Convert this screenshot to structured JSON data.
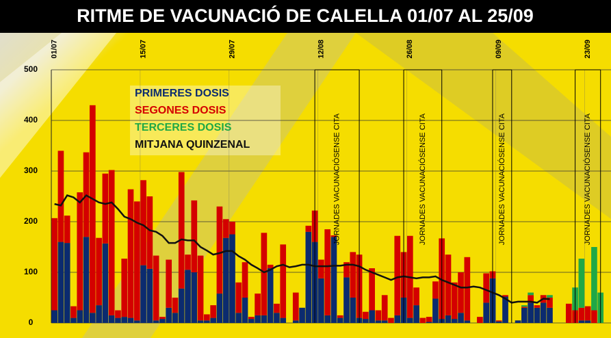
{
  "chart_data": {
    "type": "bar",
    "stacked": true,
    "title": "RITME DE VACUNACIÓ DE CALELLA 01/07 AL 25/09",
    "categories": [
      "01/07",
      null,
      null,
      null,
      null,
      null,
      null,
      null,
      null,
      null,
      null,
      null,
      null,
      null,
      "15/07",
      null,
      null,
      null,
      null,
      null,
      null,
      null,
      null,
      null,
      null,
      null,
      null,
      null,
      "29/07",
      null,
      null,
      null,
      null,
      null,
      null,
      null,
      null,
      null,
      null,
      null,
      null,
      null,
      "12/08",
      null,
      null,
      null,
      null,
      null,
      null,
      null,
      null,
      null,
      null,
      null,
      null,
      null,
      "26/08",
      null,
      null,
      null,
      null,
      null,
      null,
      null,
      null,
      null,
      null,
      null,
      null,
      null,
      "09/09",
      null,
      null,
      null,
      null,
      null,
      null,
      null,
      null,
      null,
      null,
      null,
      null,
      null,
      "23/09",
      null,
      null
    ],
    "series": [
      {
        "name": "PRIMERES DOSIS",
        "color": "#0b2b6f",
        "values": [
          25,
          160,
          158,
          10,
          25,
          170,
          20,
          35,
          157,
          15,
          10,
          12,
          10,
          5,
          114,
          107,
          5,
          8,
          30,
          20,
          68,
          105,
          100,
          5,
          5,
          10,
          58,
          168,
          175,
          20,
          50,
          8,
          15,
          15,
          108,
          20,
          10,
          0,
          5,
          30,
          180,
          160,
          88,
          15,
          170,
          10,
          90,
          50,
          10,
          8,
          25,
          5,
          5,
          0,
          15,
          50,
          10,
          35,
          0,
          2,
          48,
          8,
          15,
          8,
          20,
          5,
          0,
          0,
          40,
          88,
          3,
          52,
          0,
          5,
          30,
          40,
          30,
          40,
          30,
          0,
          0,
          0,
          0,
          5,
          5,
          0,
          0
        ]
      },
      {
        "name": "SEGONES DOSIS",
        "color": "#d40000",
        "values": [
          182,
          180,
          54,
          23,
          233,
          167,
          410,
          133,
          138,
          287,
          15,
          115,
          254,
          235,
          168,
          143,
          128,
          4,
          95,
          30,
          230,
          30,
          142,
          128,
          12,
          25,
          172,
          37,
          25,
          60,
          70,
          4,
          43,
          163,
          7,
          18,
          145,
          0,
          55,
          0,
          12,
          62,
          37,
          170,
          3,
          5,
          30,
          90,
          125,
          14,
          83,
          20,
          50,
          10,
          157,
          90,
          162,
          35,
          10,
          10,
          34,
          159,
          120,
          72,
          80,
          125,
          0,
          12,
          58,
          14,
          2,
          3,
          0,
          0,
          2,
          15,
          5,
          15,
          20,
          0,
          0,
          38,
          25,
          25,
          28,
          25,
          0
        ]
      },
      {
        "name": "TERCERES DOSIS",
        "color": "#1fa846",
        "values": [
          0,
          0,
          0,
          0,
          0,
          0,
          0,
          0,
          0,
          0,
          0,
          0,
          0,
          0,
          0,
          0,
          0,
          0,
          0,
          0,
          0,
          0,
          0,
          0,
          0,
          0,
          0,
          0,
          0,
          0,
          0,
          0,
          0,
          0,
          0,
          0,
          0,
          0,
          0,
          0,
          0,
          0,
          0,
          0,
          0,
          0,
          0,
          0,
          0,
          0,
          0,
          0,
          0,
          0,
          0,
          0,
          0,
          0,
          0,
          0,
          0,
          0,
          0,
          0,
          0,
          0,
          0,
          0,
          0,
          0,
          0,
          0,
          0,
          0,
          3,
          5,
          0,
          0,
          5,
          0,
          0,
          0,
          45,
          97,
          0,
          125,
          60
        ]
      },
      {
        "name": "MITJANA QUINZENAL",
        "color": "#111111",
        "type": "line",
        "values": [
          235,
          232,
          252,
          248,
          238,
          252,
          245,
          238,
          235,
          238,
          225,
          210,
          205,
          198,
          193,
          183,
          180,
          172,
          158,
          158,
          165,
          163,
          163,
          150,
          143,
          135,
          138,
          142,
          142,
          132,
          125,
          115,
          108,
          100,
          105,
          112,
          115,
          110,
          112,
          115,
          115,
          112,
          112,
          112,
          113,
          113,
          115,
          115,
          112,
          105,
          100,
          95,
          90,
          85,
          90,
          92,
          90,
          88,
          90,
          90,
          92,
          85,
          80,
          75,
          70,
          70,
          72,
          70,
          65,
          60,
          55,
          48,
          40,
          42,
          42,
          42,
          40,
          48,
          47,
          null,
          null,
          null,
          null,
          null,
          null,
          null,
          null
        ]
      }
    ],
    "annotations": [
      "JORNADES VACUNACIÓSENSE CITA",
      "JORNADES VACUNACIÓSENSE CITA",
      "JORNADES VACUNACIÓSENSE CITA",
      "JORNADES VACUNACIÓSENSE CITA"
    ],
    "ylim": [
      0,
      500
    ],
    "yticks": [
      0,
      100,
      200,
      300,
      400,
      500
    ],
    "grid": true
  }
}
